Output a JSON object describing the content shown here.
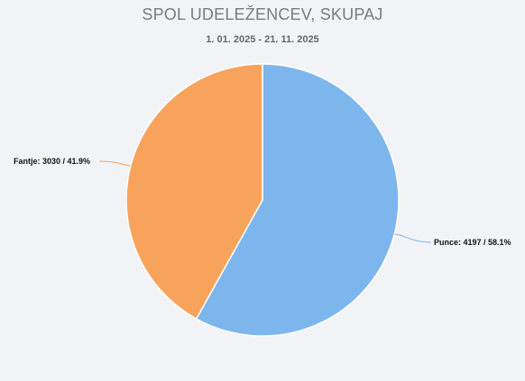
{
  "chart_data": {
    "type": "pie",
    "title": "SPOL UDELEŽENCEV, SKUPAJ",
    "subtitle": "1. 01. 2025 - 21. 11. 2025",
    "slices": [
      {
        "name": "Punce",
        "value": 4197,
        "percent": 58.1,
        "color": "#7db6ec",
        "label": "Punce: 4197 / 58.1%"
      },
      {
        "name": "Fantje",
        "value": 3030,
        "percent": 41.9,
        "color": "#f7a35c",
        "label": "Fantje: 3030 / 41.9%"
      }
    ]
  }
}
